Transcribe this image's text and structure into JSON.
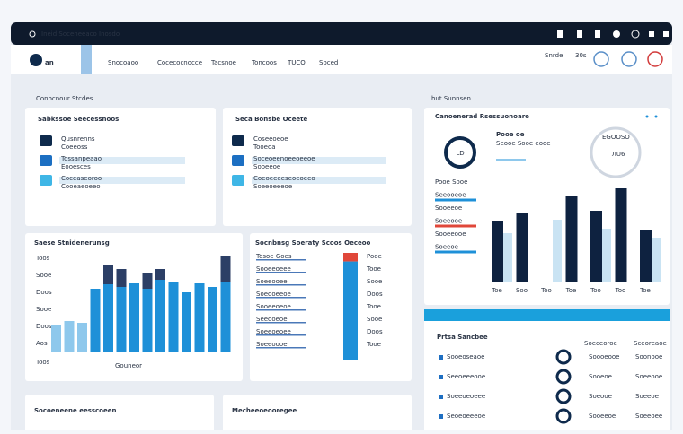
{
  "header": {
    "window_title": "Ineid Soceneeaco Inosdo",
    "brand": "an",
    "nav": [
      "Snocoaoo",
      "Cocecocnocce",
      "Tacsnoe",
      "Toncoos",
      "TUCO",
      "Soced"
    ],
    "user": "Snrde",
    "count": "30s"
  },
  "left": {
    "title": "Conocnour Stcdes",
    "card1": {
      "title": "Sabkssoe Seecessnoos",
      "items": [
        {
          "label": "Qusnrenns",
          "sub": "Coeeoss"
        },
        {
          "label": "Tossanpeaao",
          "sub": "Eooesces"
        },
        {
          "label": "Coceaseoroo",
          "sub": "Cooeaeoeeo"
        }
      ]
    },
    "card2": {
      "title": "Seca Bonsbe Oceete",
      "items": [
        {
          "label": "Coseeoeoe",
          "sub": "Tooeoa"
        },
        {
          "label": "Soceoeenoeeoeeoe",
          "sub": "Sooeeoe"
        },
        {
          "label": "Coeoeeeeseoeoeeo",
          "sub": "Soeeoeeeoe"
        }
      ]
    }
  },
  "chart1": {
    "title": "Saese Stnidenerunsg",
    "yticks": [
      "Toos",
      "Sooe",
      "Doos",
      "Sooe",
      "Doos",
      "Aos"
    ],
    "axis_note": "Toos",
    "footer": "Gouneor",
    "blue": [
      30,
      34,
      32,
      70,
      75,
      72,
      76,
      70,
      80,
      78,
      66,
      76,
      72,
      78
    ],
    "navy": [
      0,
      0,
      0,
      0,
      22,
      20,
      0,
      18,
      12,
      0,
      0,
      0,
      0,
      28
    ]
  },
  "list": {
    "title": "Socnbnsg Soeraty Scoos Oeceoo",
    "items": [
      "Tosoe Goes",
      "Sooeeoeee",
      "Soeeooee",
      "Soeooeeoe",
      "Sooeeoeoe",
      "Seeooeoe",
      "Soeeoeoee",
      "Soeeoooe"
    ],
    "values": [
      "Pooe",
      "Tooe",
      "Sooe",
      "Doos",
      "Tooe",
      "Sooe",
      "Doos",
      "Tooe"
    ],
    "bar_red": 8,
    "bar_blue": 92
  },
  "right": {
    "title": "hut Sunnsen",
    "panel": {
      "title": "Canoenerad Rsessuonoare",
      "donut_label": "LD",
      "stat_label": "Pooe oe",
      "stat_sub": "Seooe Sooe eooe",
      "ring_label": "ЛU6",
      "ring_sub": "EGOOSO",
      "legend": [
        "Pooe Sooe",
        "Seeooeoe",
        "Sooeeoe",
        "Soeeooe",
        "Sooeeooe",
        "Soeeoe"
      ],
      "x_labels": [
        "Toe",
        "Soo",
        "Too",
        "Toe",
        "Too",
        "Too",
        "Toe"
      ],
      "navy": [
        68,
        78,
        0,
        96,
        80,
        105,
        58
      ],
      "light": [
        55,
        0,
        70,
        0,
        60,
        0,
        50
      ]
    },
    "table": {
      "title": "Prtsa Sancbee",
      "col1": "Soeceoroe",
      "col2": "Sceoreaoe",
      "rows": [
        {
          "label": "Sooeoseaoe",
          "c1": "Soooeooe",
          "c2": "Soonooe"
        },
        {
          "label": "Seeoeeeooe",
          "c1": "Sooeoe",
          "c2": "Soeeooe"
        },
        {
          "label": "Soeeoeoeee",
          "c1": "Soeooe",
          "c2": "Soeeoe"
        },
        {
          "label": "Seoeoeeeoe",
          "c1": "Sooeeoe",
          "c2": "Soeeoee"
        }
      ]
    }
  },
  "bottom": {
    "card1": "Socoeneene eesscoeen",
    "card2": "Mecheeoeooregee"
  }
}
